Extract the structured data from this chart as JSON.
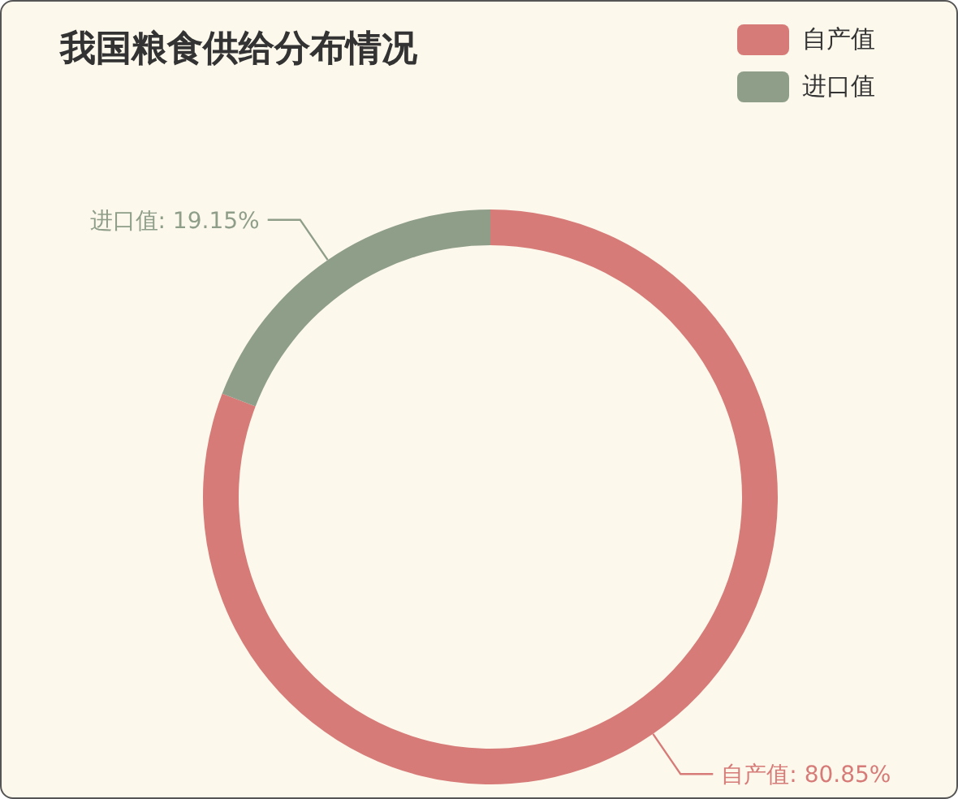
{
  "chart_data": {
    "type": "donut",
    "title": "我国粮食供给分布情况",
    "categories": [
      "自产值",
      "进口值"
    ],
    "values": [
      80.85,
      19.15
    ],
    "colors": [
      "#d67b78",
      "#8f9e89"
    ],
    "value_labels": [
      "自产值: 80.85%",
      "进口值: 19.15%"
    ],
    "legend": "top right"
  }
}
